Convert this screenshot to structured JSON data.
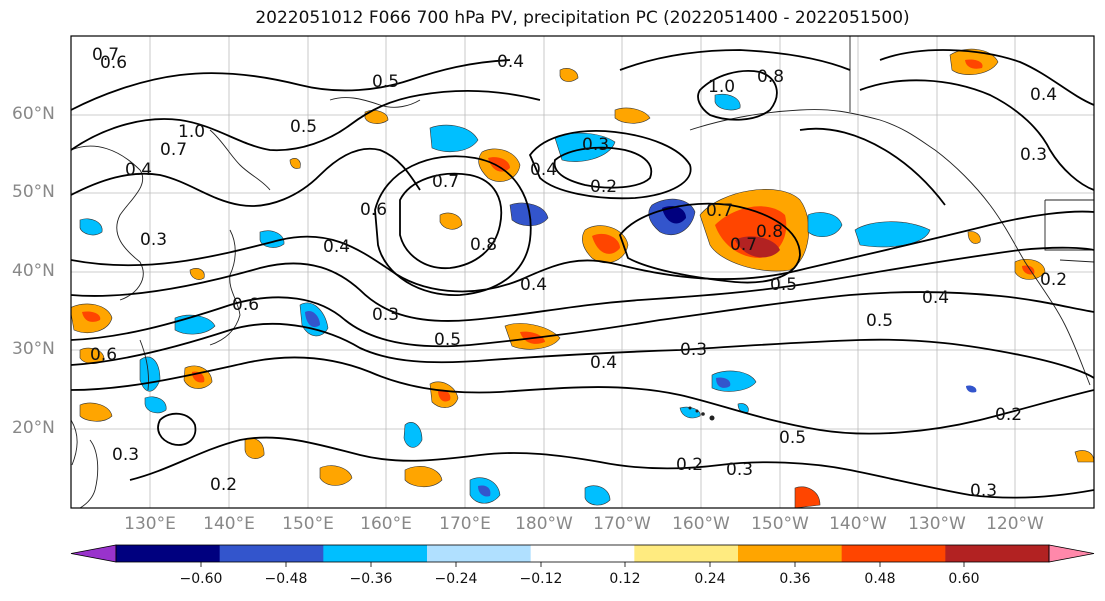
{
  "title": "2022051012 F066 700 hPa PV, precipitation PC (2022051400 - 2022051500)",
  "lat_labels": [
    "60°N",
    "50°N",
    "40°N",
    "30°N",
    "20°N"
  ],
  "lon_labels": [
    "130°E",
    "140°E",
    "150°E",
    "160°E",
    "170°E",
    "180°W",
    "170°W",
    "160°W",
    "150°W",
    "140°W",
    "130°W",
    "120°W"
  ],
  "colorbar": {
    "ticks": [
      "−0.60",
      "−0.48",
      "−0.36",
      "−0.24",
      "−0.12",
      "0.12",
      "0.24",
      "0.36",
      "0.48",
      "0.60"
    ],
    "colors": [
      "#9933cc",
      "#00007f",
      "#3355cc",
      "#00bfff",
      "#b0e0ff",
      "#ffffff",
      "#ffeb80",
      "#ffa500",
      "#ff4500",
      "#b22222",
      "#ff88aa"
    ]
  },
  "contour_labels": [
    "0.7",
    "0.6",
    "1.0",
    "0.5",
    "0.4",
    "0.3",
    "0.8",
    "0.2"
  ]
}
